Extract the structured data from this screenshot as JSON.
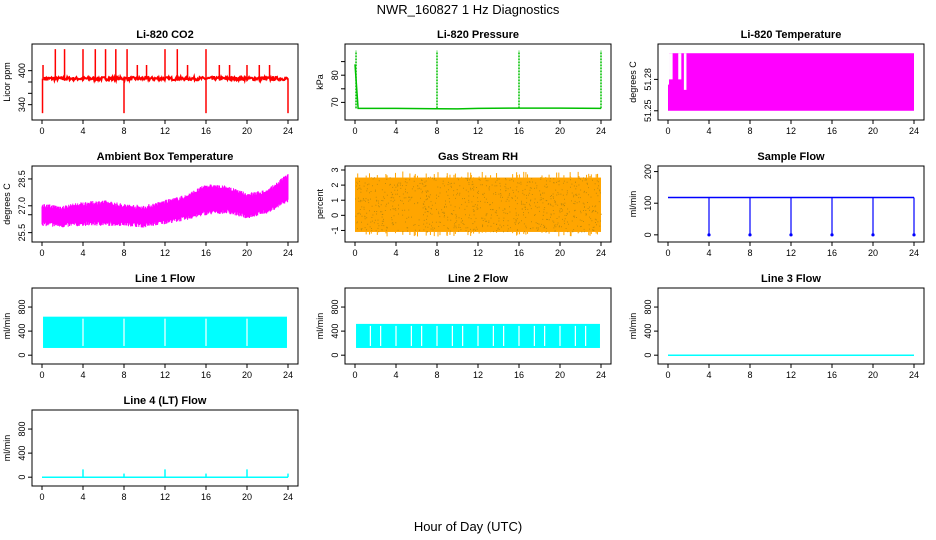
{
  "page": {
    "title": "NWR_160827  1 Hz Diagnostics",
    "xlabel": "Hour of Day (UTC)"
  },
  "chart_data": [
    {
      "type": "line",
      "title": "Li-820 CO2",
      "ylabel": "Licor ppm",
      "color": "#ff0000",
      "xlim": [
        0,
        24
      ],
      "ylim": [
        320,
        440
      ],
      "xticks": [
        0,
        4,
        8,
        12,
        16,
        20,
        24
      ],
      "yticks": [
        340,
        360,
        380,
        400
      ],
      "ytick_labels": [
        "340",
        "",
        "",
        "400"
      ],
      "series": [
        {
          "x": [
            0,
            0.5,
            2,
            4,
            6,
            8,
            10,
            12,
            14,
            16,
            18,
            20,
            22,
            24
          ],
          "y": [
            385,
            385,
            386,
            386,
            386,
            385,
            386,
            386,
            386,
            385,
            386,
            386,
            386,
            384
          ]
        }
      ],
      "spikes_up": [
        0.1,
        1.3,
        2.2,
        4,
        5.2,
        6.2,
        7.2,
        8.3,
        9.3,
        10.2,
        12,
        13.2,
        14.2,
        16,
        17.3,
        18.3,
        20,
        21.2,
        22.2
      ],
      "spikes_down": [
        0.05,
        8,
        16,
        24
      ]
    },
    {
      "type": "line",
      "title": "Li-820 Pressure",
      "ylabel": "kPa",
      "color": "#00c000",
      "xlim": [
        0,
        24
      ],
      "ylim": [
        65,
        90
      ],
      "xticks": [
        0,
        4,
        8,
        12,
        16,
        20,
        24
      ],
      "yticks": [
        70,
        75,
        80,
        85
      ],
      "ytick_labels": [
        "70",
        "",
        "80",
        ""
      ],
      "series": [
        {
          "x": [
            0,
            0.3,
            4,
            8,
            10,
            12,
            16,
            20,
            24
          ],
          "y": [
            84,
            67.8,
            67.8,
            67.7,
            67.6,
            67.8,
            67.9,
            67.9,
            67.8
          ]
        }
      ],
      "spikes_up": [
        0.1,
        8,
        16,
        24
      ]
    },
    {
      "type": "area",
      "title": "Li-820 Temperature",
      "ylabel": "degrees C",
      "color": "#ff00ff",
      "xlim": [
        0,
        24
      ],
      "ylim": [
        51.245,
        51.31
      ],
      "xticks": [
        0,
        4,
        8,
        12,
        16,
        20,
        24
      ],
      "yticks": [
        51.25,
        51.28
      ],
      "ytick_labels": [
        "51.25",
        "51.28"
      ],
      "band": {
        "low": 51.25,
        "high": 51.305
      },
      "gaps": [
        [
          0.1,
          0.45,
          51.28
        ],
        [
          1.0,
          1.3,
          51.28
        ],
        [
          1.55,
          1.8,
          51.27
        ]
      ]
    },
    {
      "type": "line",
      "title": "Ambient Box Temperature",
      "ylabel": "degrees C",
      "color": "#ff00ff",
      "xlim": [
        0,
        24
      ],
      "ylim": [
        25.2,
        29.0
      ],
      "xticks": [
        0,
        4,
        8,
        12,
        16,
        20,
        24
      ],
      "yticks": [
        25.5,
        26.5,
        27.0,
        28.5
      ],
      "ytick_labels": [
        "25.5",
        "",
        "27.0",
        "28.5"
      ],
      "band_low": [
        {
          "x": [
            0,
            2,
            4,
            6,
            8,
            10,
            12,
            14,
            16,
            18,
            20,
            22,
            24
          ],
          "y": [
            26.0,
            25.9,
            26.0,
            26.0,
            26.0,
            25.9,
            26.1,
            26.3,
            26.6,
            26.7,
            26.4,
            26.7,
            27.3
          ]
        }
      ],
      "band_high": [
        {
          "x": [
            0,
            2,
            4,
            6,
            8,
            10,
            12,
            14,
            16,
            18,
            20,
            22,
            24
          ],
          "y": [
            27.0,
            26.9,
            27.1,
            27.2,
            27.0,
            26.9,
            27.2,
            27.5,
            28.1,
            28.0,
            27.6,
            27.8,
            28.7
          ]
        }
      ]
    },
    {
      "type": "scatter",
      "title": "Gas Stream RH",
      "ylabel": "percent",
      "color": "#ffa500",
      "color2": "#b8860b",
      "xlim": [
        0,
        24
      ],
      "ylim": [
        -1.5,
        3.0
      ],
      "xticks": [
        0,
        4,
        8,
        12,
        16,
        20,
        24
      ],
      "yticks": [
        -1,
        0,
        1,
        2,
        3
      ],
      "ytick_labels": [
        "-1",
        "0",
        "1",
        "2",
        "3"
      ],
      "band": {
        "low": -1.1,
        "high": 2.5
      }
    },
    {
      "type": "line",
      "title": "Sample Flow",
      "ylabel": "ml/min",
      "color": "#0000ff",
      "xlim": [
        0,
        24
      ],
      "ylim": [
        -10,
        205
      ],
      "xticks": [
        0,
        4,
        8,
        12,
        16,
        20,
        24
      ],
      "yticks": [
        0,
        100,
        200
      ],
      "ytick_labels": [
        "0",
        "100",
        "200"
      ],
      "series": [
        {
          "x": [
            0,
            24
          ],
          "y": [
            118,
            118
          ]
        }
      ],
      "dips": [
        4,
        8,
        12,
        16,
        20,
        24
      ]
    },
    {
      "type": "area",
      "title": "Line 1 Flow",
      "ylabel": "ml/min",
      "color": "#00ffff",
      "xlim": [
        0,
        24
      ],
      "ylim": [
        -80,
        1050
      ],
      "xticks": [
        0,
        4,
        8,
        12,
        16,
        20,
        24
      ],
      "yticks": [
        0,
        400,
        800
      ],
      "ytick_labels": [
        "0",
        "400",
        "800"
      ],
      "band": {
        "low": 120,
        "high": 640
      },
      "gaps": [
        4,
        8,
        12,
        16,
        20
      ]
    },
    {
      "type": "area",
      "title": "Line 2 Flow",
      "ylabel": "ml/min",
      "color": "#00ffff",
      "xlim": [
        0,
        24
      ],
      "ylim": [
        -80,
        1050
      ],
      "xticks": [
        0,
        4,
        8,
        12,
        16,
        20,
        24
      ],
      "yticks": [
        0,
        400,
        800
      ],
      "ytick_labels": [
        "0",
        "400",
        "800"
      ],
      "band": {
        "low": 120,
        "high": 520
      },
      "gaps": [
        1.5,
        2.5,
        4,
        5.5,
        6.5,
        8,
        9.5,
        10.5,
        12,
        13.5,
        14.5,
        16,
        17.5,
        18.5,
        20,
        21.5,
        22.5
      ]
    },
    {
      "type": "line",
      "title": "Line 3 Flow",
      "ylabel": "ml/min",
      "color": "#00ffff",
      "xlim": [
        0,
        24
      ],
      "ylim": [
        -80,
        1050
      ],
      "xticks": [
        0,
        4,
        8,
        12,
        16,
        20,
        24
      ],
      "yticks": [
        0,
        400,
        800
      ],
      "ytick_labels": [
        "0",
        "400",
        "800"
      ],
      "series": [
        {
          "x": [
            0,
            24
          ],
          "y": [
            0,
            0
          ]
        }
      ]
    },
    {
      "type": "line",
      "title": "Line 4 (LT) Flow",
      "ylabel": "ml/min",
      "color": "#00ffff",
      "xlim": [
        0,
        24
      ],
      "ylim": [
        -80,
        1050
      ],
      "xticks": [
        0,
        4,
        8,
        12,
        16,
        20,
        24
      ],
      "yticks": [
        0,
        400,
        800
      ],
      "ytick_labels": [
        "0",
        "400",
        "800"
      ],
      "series": [
        {
          "x": [
            0,
            24
          ],
          "y": [
            0,
            0
          ]
        }
      ],
      "spikes_up": [
        [
          4,
          130
        ],
        [
          8,
          60
        ],
        [
          12,
          130
        ],
        [
          16,
          60
        ],
        [
          20,
          130
        ],
        [
          24,
          60
        ]
      ]
    }
  ]
}
